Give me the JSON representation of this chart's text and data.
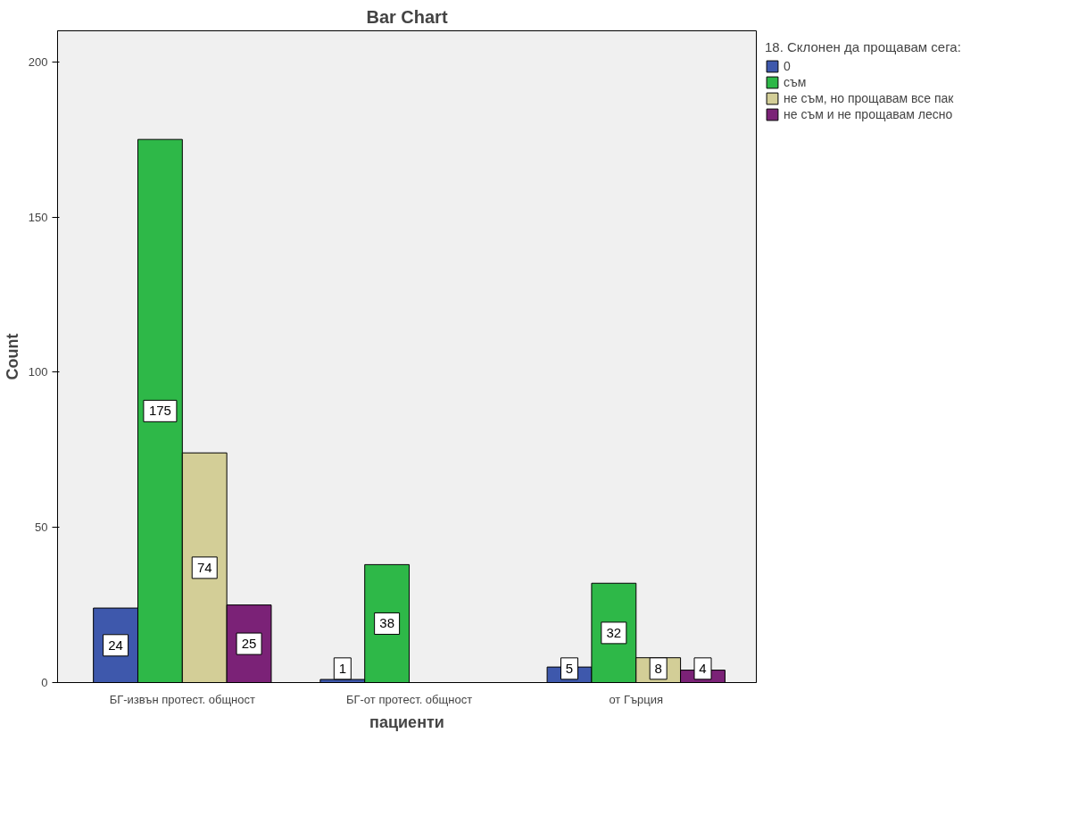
{
  "chart_data": {
    "type": "bar",
    "title": "Bar Chart",
    "xlabel": "пациенти",
    "ylabel": "Count",
    "legend_title": "18. Склонен да прощавам сега:",
    "categories": [
      "БГ-извън протест. общност",
      "БГ-от протест. общност",
      "от Гърция"
    ],
    "series": [
      {
        "name": "0",
        "color": "#3e58ac",
        "values": [
          24,
          1,
          5
        ]
      },
      {
        "name": "съм",
        "color": "#2eb848",
        "values": [
          175,
          38,
          32
        ]
      },
      {
        "name": "не съм, но прощавам все пак",
        "color": "#d3ce97",
        "values": [
          74,
          null,
          8
        ]
      },
      {
        "name": "не съм и не прощавам лесно",
        "color": "#7b2277",
        "values": [
          25,
          null,
          4
        ]
      }
    ],
    "ylim": [
      0,
      210
    ],
    "yticks": [
      0,
      50,
      100,
      150,
      200
    ],
    "grid": false,
    "legend": "right",
    "data_labels": true
  }
}
